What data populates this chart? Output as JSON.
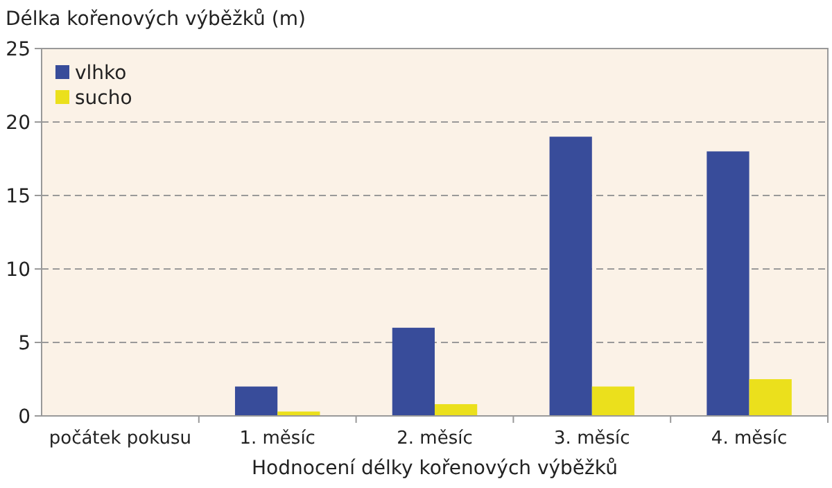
{
  "chart_data": {
    "type": "bar",
    "ylabel": "Délka kořenových výběžků (m)",
    "xlabel": "Hodnocení délky kořenových výběžků",
    "categories": [
      "počátek pokusu",
      "1. měsíc",
      "2. měsíc",
      "3. měsíc",
      "4. měsíc"
    ],
    "series": [
      {
        "name": "vlhko",
        "color": "#384c9a",
        "values": [
          0,
          2,
          6,
          19,
          18
        ]
      },
      {
        "name": "sucho",
        "color": "#ebe01c",
        "values": [
          0,
          0.3,
          0.8,
          2,
          2.5
        ]
      }
    ],
    "ylim": [
      0,
      25
    ],
    "yticks": [
      0,
      5,
      10,
      15,
      20,
      25
    ],
    "grid": "y",
    "legend": "top left"
  }
}
